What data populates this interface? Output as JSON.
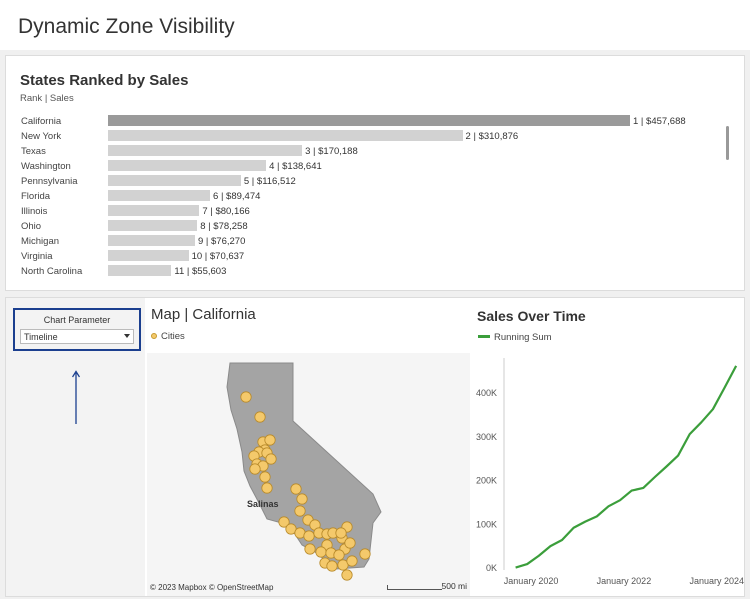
{
  "header": {
    "title": "Dynamic Zone Visibility"
  },
  "ranking": {
    "title": "States Ranked by Sales",
    "subtitle": "Rank | Sales",
    "max_value": 457688,
    "rows": [
      {
        "state": "California",
        "rank": 1,
        "sales": 457688,
        "label": "1 | $457,688"
      },
      {
        "state": "New York",
        "rank": 2,
        "sales": 310876,
        "label": "2 | $310,876"
      },
      {
        "state": "Texas",
        "rank": 3,
        "sales": 170188,
        "label": "3 | $170,188"
      },
      {
        "state": "Washington",
        "rank": 4,
        "sales": 138641,
        "label": "4 | $138,641"
      },
      {
        "state": "Pennsylvania",
        "rank": 5,
        "sales": 116512,
        "label": "5 | $116,512"
      },
      {
        "state": "Florida",
        "rank": 6,
        "sales": 89474,
        "label": "6 | $89,474"
      },
      {
        "state": "Illinois",
        "rank": 7,
        "sales": 80166,
        "label": "7 | $80,166"
      },
      {
        "state": "Ohio",
        "rank": 8,
        "sales": 78258,
        "label": "8 | $78,258"
      },
      {
        "state": "Michigan",
        "rank": 9,
        "sales": 76270,
        "label": "9 | $76,270"
      },
      {
        "state": "Virginia",
        "rank": 10,
        "sales": 70637,
        "label": "10 | $70,637"
      },
      {
        "state": "North Carolina",
        "rank": 11,
        "sales": 55603,
        "label": "11 | $55,603"
      }
    ]
  },
  "parameter": {
    "label": "Chart Parameter",
    "selected": "Timeline"
  },
  "map": {
    "title": "Map | California",
    "legend": "Cities",
    "city_label": "Salinas",
    "attribution": "© 2023 Mapbox © OpenStreetMap",
    "scale_label": "500 mi",
    "colors": {
      "state": "#a4a4a4",
      "city": "#f4c96b",
      "city_border": "#b88a2a"
    }
  },
  "sales_over_time": {
    "title": "Sales Over Time",
    "legend": "Running Sum",
    "color": "#3b9e3b",
    "y_ticks": [
      "0K",
      "100K",
      "200K",
      "300K",
      "400K"
    ],
    "x_ticks": [
      "January 2020",
      "January 2022",
      "January 2024"
    ]
  },
  "chart_data": {
    "type": "line",
    "title": "Sales Over Time",
    "series": [
      {
        "name": "Running Sum",
        "x": [
          "2019-09",
          "2019-12",
          "2020-03",
          "2020-06",
          "2020-09",
          "2020-12",
          "2021-03",
          "2021-06",
          "2021-09",
          "2021-12",
          "2022-03",
          "2022-06",
          "2022-09",
          "2022-12",
          "2023-03",
          "2023-06",
          "2023-09",
          "2023-12",
          "2024-03",
          "2024-06"
        ],
        "values": [
          1000,
          9000,
          28000,
          50000,
          64000,
          92000,
          106000,
          118000,
          141000,
          155000,
          177000,
          183000,
          208000,
          232000,
          257000,
          306000,
          333000,
          363000,
          412000,
          462000
        ]
      }
    ],
    "x_range": [
      "2019-06",
      "2024-07"
    ],
    "ylim": [
      0,
      480000
    ],
    "y_ticks": [
      "0K",
      "100K",
      "200K",
      "300K",
      "400K"
    ],
    "x_ticks": [
      "January 2020",
      "January 2022",
      "January 2024"
    ],
    "grid": false
  }
}
